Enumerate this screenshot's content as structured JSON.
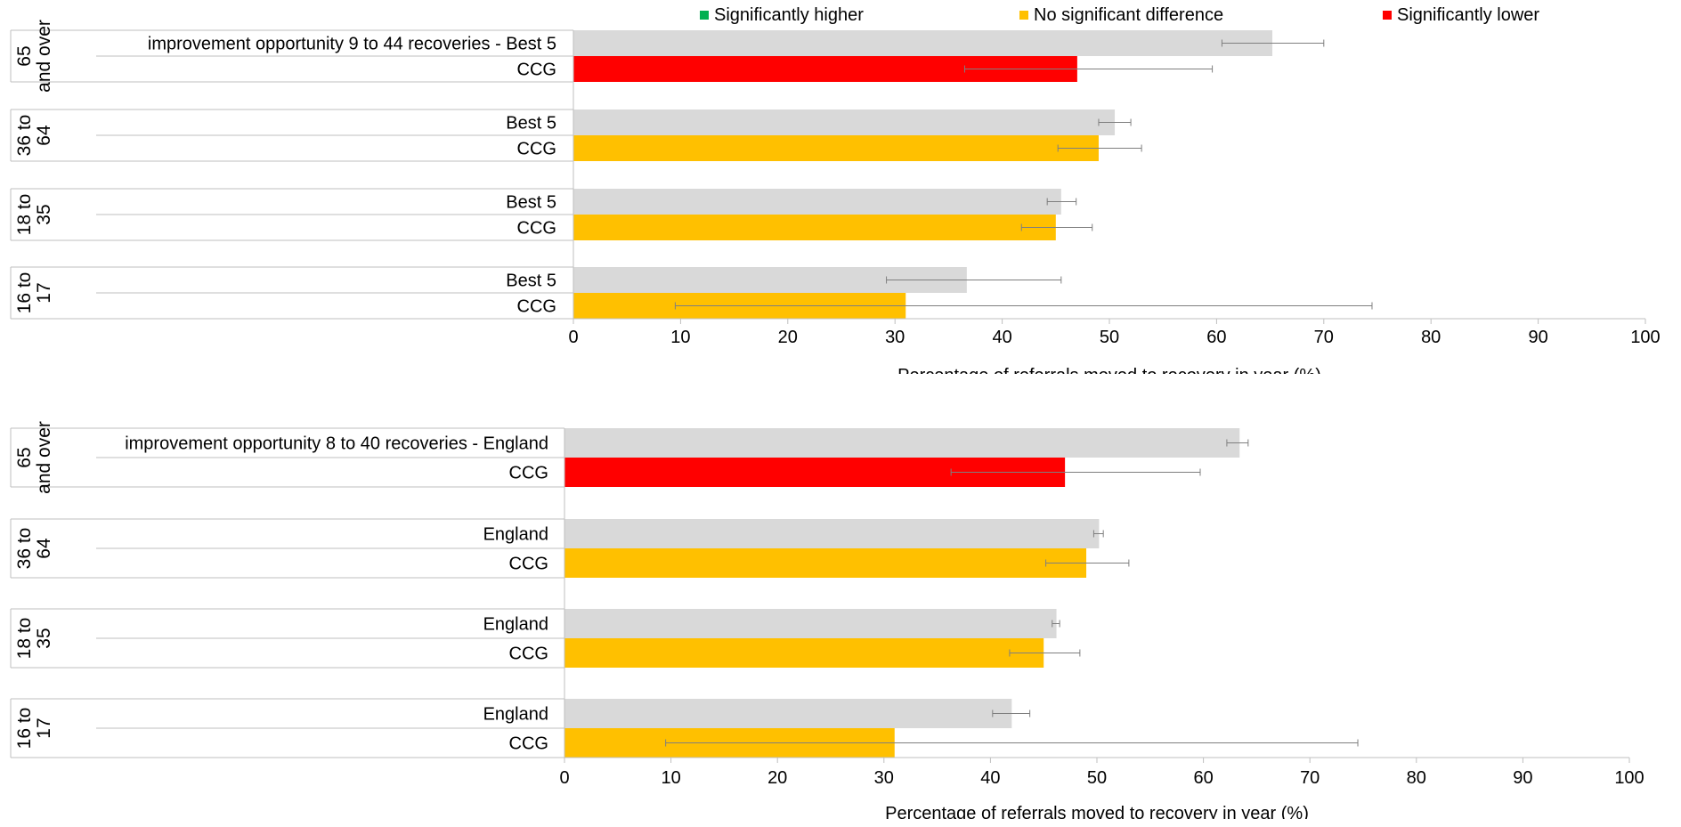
{
  "legend": {
    "items": [
      {
        "label": "Significantly higher",
        "color": "#00b050"
      },
      {
        "label": "No significant difference",
        "color": "#ffc000"
      },
      {
        "label": "Significantly lower",
        "color": "#ff0000"
      }
    ]
  },
  "colors": {
    "benchmark_bar": "#d9d9d9",
    "not_significant": "#ffc000",
    "significantly_lower": "#ff0000",
    "significantly_higher": "#00b050",
    "error_bar": "#7f7f7f",
    "axis": "#bfbfbf"
  },
  "chart_data": [
    {
      "type": "bar",
      "orientation": "horizontal",
      "xlabel": "Percentage of referrals moved to recovery in year (%)",
      "xlim": [
        0,
        100
      ],
      "xticks": [
        0,
        10,
        20,
        30,
        40,
        50,
        60,
        70,
        80,
        90,
        100
      ],
      "groups": [
        {
          "label": "65 and over",
          "annotation": "improvement opportunity 9 to 44 recoveries - Best 5",
          "bars": [
            {
              "label": "Best 5",
              "value": 65.2,
              "ci": [
                60.5,
                70.0
              ],
              "status": "benchmark"
            },
            {
              "label": "CCG",
              "value": 47.0,
              "ci": [
                36.5,
                59.6
              ],
              "status": "significantly_lower"
            }
          ]
        },
        {
          "label": "36 to 64",
          "annotation": "",
          "bars": [
            {
              "label": "Best 5",
              "value": 50.5,
              "ci": [
                49.0,
                52.0
              ],
              "status": "benchmark"
            },
            {
              "label": "CCG",
              "value": 49.0,
              "ci": [
                45.2,
                53.0
              ],
              "status": "not_significant"
            }
          ]
        },
        {
          "label": "18 to 35",
          "annotation": "",
          "bars": [
            {
              "label": "Best 5",
              "value": 45.5,
              "ci": [
                44.2,
                46.9
              ],
              "status": "benchmark"
            },
            {
              "label": "CCG",
              "value": 45.0,
              "ci": [
                41.8,
                48.4
              ],
              "status": "not_significant"
            }
          ]
        },
        {
          "label": "16 to 17",
          "annotation": "",
          "bars": [
            {
              "label": "Best 5",
              "value": 36.7,
              "ci": [
                29.2,
                45.5
              ],
              "status": "benchmark"
            },
            {
              "label": "CCG",
              "value": 31.0,
              "ci": [
                9.5,
                74.5
              ],
              "status": "not_significant"
            }
          ]
        }
      ]
    },
    {
      "type": "bar",
      "orientation": "horizontal",
      "xlabel": "Percentage of referrals moved to recovery in year (%)",
      "xlim": [
        0,
        100
      ],
      "xticks": [
        0,
        10,
        20,
        30,
        40,
        50,
        60,
        70,
        80,
        90,
        100
      ],
      "groups": [
        {
          "label": "65 and over",
          "annotation": "improvement opportunity 8 to 40 recoveries - England",
          "bars": [
            {
              "label": "England",
              "value": 63.4,
              "ci": [
                62.2,
                64.2
              ],
              "status": "benchmark"
            },
            {
              "label": "CCG",
              "value": 47.0,
              "ci": [
                36.3,
                59.7
              ],
              "status": "significantly_lower"
            }
          ]
        },
        {
          "label": "36 to 64",
          "annotation": "",
          "bars": [
            {
              "label": "England",
              "value": 50.2,
              "ci": [
                49.7,
                50.6
              ],
              "status": "benchmark"
            },
            {
              "label": "CCG",
              "value": 49.0,
              "ci": [
                45.2,
                53.0
              ],
              "status": "not_significant"
            }
          ]
        },
        {
          "label": "18 to 35",
          "annotation": "",
          "bars": [
            {
              "label": "England",
              "value": 46.2,
              "ci": [
                45.8,
                46.5
              ],
              "status": "benchmark"
            },
            {
              "label": "CCG",
              "value": 45.0,
              "ci": [
                41.8,
                48.4
              ],
              "status": "not_significant"
            }
          ]
        },
        {
          "label": "16 to 17",
          "annotation": "",
          "bars": [
            {
              "label": "England",
              "value": 42.0,
              "ci": [
                40.2,
                43.7
              ],
              "status": "benchmark"
            },
            {
              "label": "CCG",
              "value": 31.0,
              "ci": [
                9.5,
                74.5
              ],
              "status": "not_significant"
            }
          ]
        }
      ]
    }
  ]
}
